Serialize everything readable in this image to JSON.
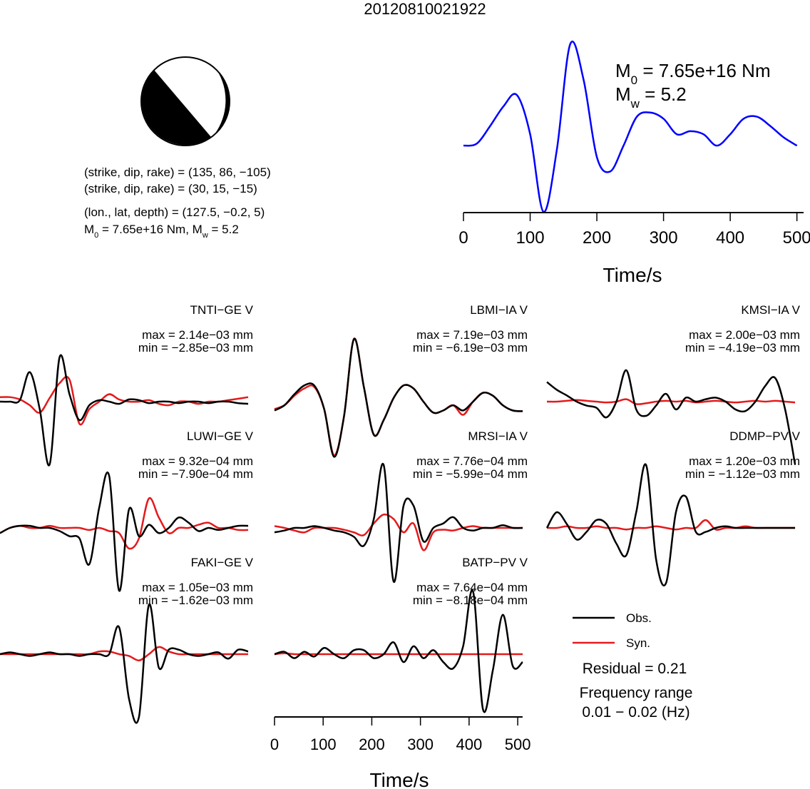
{
  "title": "20120810021922",
  "mechanism": {
    "planes": [
      "(strike, dip, rake) = (135, 86, −105)",
      "(strike, dip, rake) = (30, 15, −15)",
      "(lon., lat, depth) = (127.5, −0.2, 5)"
    ],
    "moment": [
      "M",
      "0",
      " = 7.65e+16 Nm, M",
      "w",
      " = 5.2"
    ]
  },
  "chart_data": [
    {
      "type": "line",
      "xlabel": "Time/s",
      "x": [
        0,
        20,
        40,
        60,
        80,
        100,
        120,
        140,
        160,
        180,
        200,
        220,
        240,
        260,
        280,
        300,
        320,
        340,
        360,
        380,
        400,
        420,
        440,
        460,
        480,
        500
      ],
      "series": [
        {
          "color": "#0000ff",
          "values": [
            0,
            0.02,
            0.19,
            0.38,
            0.49,
            0.11,
            -0.64,
            -0.04,
            0.98,
            0.64,
            -0.11,
            -0.25,
            0,
            0.28,
            0.32,
            0.26,
            0.11,
            0.14,
            0.11,
            0,
            0.11,
            0.26,
            0.28,
            0.19,
            0.08,
            0
          ]
        }
      ],
      "xlim": [
        0,
        510
      ],
      "xticks": [
        0,
        100,
        200,
        300,
        400,
        500
      ],
      "annotations": [
        [
          "M",
          "0",
          " = 7.65e+16 Nm"
        ],
        [
          "M",
          "w",
          " = 5.2"
        ]
      ]
    },
    {
      "type": "waveforms",
      "xlabel": "Time/s",
      "x": [
        0,
        20,
        40,
        60,
        80,
        100,
        120,
        140,
        160,
        180,
        200,
        220,
        240,
        260,
        280,
        300,
        320,
        340,
        360,
        380,
        400,
        420,
        440,
        460,
        480,
        500
      ],
      "xlim": [
        0,
        510
      ],
      "xticks": [
        0,
        100,
        200,
        300,
        400,
        500
      ],
      "series": [
        {
          "name": "Obs.",
          "color": "#000000"
        },
        {
          "name": "Syn.",
          "color": "#e41a1c"
        }
      ],
      "residual": "Residual = 0.21",
      "frequency": [
        "Frequency range",
        "0.01 − 0.02 (Hz)"
      ],
      "panels": [
        {
          "title": "TNTI−GE V",
          "max": "max = 2.14e−03 mm",
          "min": "min = −2.85e−03 mm",
          "obs": [
            0,
            0,
            6.6e-05,
            0.00131,
            -0.00033,
            -0.00279,
            0.00197,
            0.00033,
            -0.00082,
            -0.00016,
            6.6e-05,
            0,
            -9.8e-05,
            9.8e-05,
            6.6e-05,
            -6.6e-05,
            0,
            0,
            -6.6e-05,
            0,
            0,
            -6.6e-05,
            0,
            0,
            -6.6e-05,
            -9.8e-05
          ],
          "syn": [
            0.0002,
            0.0002,
            9.8e-05,
            -0.00016,
            -0.00049,
            0.00016,
            0.00082,
            0.00098,
            -0.00098,
            -0.00033,
            0,
            0.00033,
            9.8e-05,
            0,
            0,
            6.6e-05,
            -9.8e-05,
            -0.00016,
            0,
            0,
            -9.8e-05,
            0,
            0,
            6.6e-05,
            0.00013,
            0.0002
          ]
        },
        {
          "title": "LBMI−IA V",
          "max": "max = 7.19e−03 mm",
          "min": "min = −6.19e−03 mm",
          "obs": [
            -0.00097,
            -0.0004,
            0.00081,
            0.00178,
            0.00178,
            -0.00081,
            -0.00606,
            -0.00162,
            0.00687,
            0.00162,
            -0.00364,
            -0.00202,
            0.0004,
            0.00178,
            0.00145,
            0,
            -0.00121,
            -0.00097,
            -0.0004,
            -0.00097,
            0,
            0.00097,
            0.00065,
            -0.0004,
            -0.00097,
            -0.00105
          ],
          "syn": [
            -0.00081,
            -0.0004,
            0.00065,
            0.00145,
            0.00162,
            -0.00081,
            -0.0059,
            -0.00162,
            0.0069,
            0.00162,
            -0.0036,
            -0.00202,
            0.0004,
            0.00178,
            0.00145,
            0,
            -0.00121,
            -0.00097,
            -0.0004,
            -0.00145,
            0,
            0.00097,
            0.00065,
            -0.0004,
            -0.00097,
            -0.00105
          ]
        },
        {
          "title": "KMSI−IA V",
          "max": "max = 2.00e−03 mm",
          "min": "min = −4.19e−03 mm",
          "obs": [
            0.00123,
            0.00074,
            0.00039,
            0,
            -0.00025,
            -0.00039,
            -0.00099,
            0,
            0.00197,
            -0.00049,
            -0.00089,
            -0.00025,
            0.00049,
            -0.00049,
            0.00025,
            0,
            0.00015,
            0.00025,
            0,
            -0.00049,
            -0.00059,
            0,
            0.00099,
            0.00148,
            -0.00049,
            -0.00394
          ],
          "syn": [
            0,
            0,
            5e-05,
            0.0001,
            5e-05,
            0,
            -5e-05,
            0,
            0.00015,
            -0.00015,
            -0.0001,
            0,
            5e-05,
            0,
            5e-05,
            -5e-05,
            0,
            5e-05,
            0,
            -5e-05,
            0,
            5e-05,
            0,
            5e-05,
            0,
            -5e-05
          ]
        },
        {
          "title": "LUWI−GE V",
          "max": "max = 9.32e−04 mm",
          "min": "min = −7.90e−04 mm",
          "obs": [
            -5.3e-05,
            0,
            2.1e-05,
            2.1e-05,
            0,
            0,
            -3.2e-05,
            -8.5e-05,
            -0.000106,
            -0.00037,
            0.00021,
            0.00053,
            -0.00064,
            0.00019,
            -8.5e-05,
            3.2e-05,
            -5.3e-05,
            0,
            0.000106,
            5.3e-05,
            -3.2e-05,
            0,
            -2.1e-05,
            0,
            2.1e-05,
            2.1e-05
          ],
          "syn": [
            -5.3e-05,
            0,
            2.1e-05,
            0,
            0,
            2.1e-05,
            0,
            0,
            0,
            -2.1e-05,
            0,
            -3.2e-05,
            -5.3e-05,
            -0.00021,
            -0.000106,
            0.0003,
            0.000106,
            -5.3e-05,
            0,
            0,
            3.2e-05,
            5.3e-05,
            0,
            0,
            -2.1e-05,
            -2.1e-05
          ]
        },
        {
          "title": "MRSI−IA V",
          "max": "max = 7.76e−04 mm",
          "min": "min = −5.99e−04 mm",
          "obs": [
            -4.4e-05,
            -2.6e-05,
            0,
            0,
            1.8e-05,
            0,
            -2.6e-05,
            -4.4e-05,
            -8.8e-05,
            -0.000176,
            8.8e-05,
            0.00062,
            -0.00053,
            0.00022,
            0.00022,
            -0.000132,
            0,
            4.4e-05,
            0.000106,
            0,
            -2.6e-05,
            0,
            0,
            2.6e-05,
            0,
            0
          ],
          "syn": [
            1.8e-05,
            0,
            -2.6e-05,
            -4.4e-05,
            0,
            0,
            0,
            -1.8e-05,
            -4.4e-05,
            -7.1e-05,
            4.4e-05,
            0.000132,
            8.8e-05,
            -4.4e-05,
            4.4e-05,
            -0.00022,
            -4.4e-05,
            -1.8e-05,
            -2.6e-05,
            0,
            1.8e-05,
            0,
            0,
            0,
            0,
            0
          ]
        },
        {
          "title": "DDMP−PV V",
          "max": "max = 1.20e−03 mm",
          "min": "min = −1.12e−03 mm",
          "obs": [
            0,
            0.00027,
            6.8e-05,
            -0.0002,
            -6.8e-05,
            0.000135,
            6.8e-05,
            -0.00027,
            -0.00047,
            0.00027,
            0.00108,
            -0.00054,
            -0.00095,
            0.00027,
            0.00054,
            -6.8e-05,
            -6.8e-05,
            0,
            2.7e-05,
            0,
            0,
            0,
            0,
            0,
            0,
            0
          ],
          "syn": [
            0,
            0,
            2.7e-05,
            0,
            0,
            2.7e-05,
            0,
            0,
            -2.7e-05,
            0,
            0,
            2.7e-05,
            0,
            -2.7e-05,
            0,
            0,
            0.000135,
            -2.7e-05,
            0,
            0,
            2.7e-05,
            0,
            0,
            0,
            0,
            0
          ]
        },
        {
          "title": "FAKI−GE V",
          "max": "max = 1.05e−03 mm",
          "min": "min = −1.62e−03 mm",
          "obs": [
            0,
            3.6e-05,
            0,
            -3.6e-05,
            0,
            3.6e-05,
            0,
            0,
            -3.6e-05,
            0,
            0,
            0,
            0.00054,
            -0.0009,
            -0.00126,
            0.00099,
            -0.00027,
            9e-05,
            9e-05,
            0,
            -3.6e-05,
            0,
            3.6e-05,
            -9e-05,
            9e-05,
            5.4e-05
          ],
          "syn": [
            0,
            0,
            0,
            0,
            0,
            0,
            0,
            0,
            0,
            0,
            5.4e-05,
            5.4e-05,
            0,
            -3.6e-05,
            -0.000126,
            0,
            0.000144,
            5.4e-05,
            0,
            0,
            0,
            0,
            0,
            0,
            0,
            0
          ]
        },
        {
          "title": "BATP−PV V",
          "max": "max = 7.64e−04 mm",
          "min": "min = −8.18e−04 mm",
          "obs": [
            0,
            2.8e-05,
            -4.7e-05,
            2.8e-05,
            -2.8e-05,
            7.4e-05,
            0,
            -4.7e-05,
            4.7e-05,
            4.7e-05,
            -4.7e-05,
            0,
            0.00014,
            -9.3e-05,
            9.3e-05,
            -4.7e-05,
            4.7e-05,
            -9.3e-05,
            -0.000167,
            9.3e-05,
            0.00074,
            -0.00065,
            -0.000186,
            0.000465,
            -0.00014,
            -9.3e-05
          ],
          "syn": [
            0,
            1e-05,
            0,
            0,
            0,
            0,
            0,
            0,
            0,
            0,
            0,
            0,
            0,
            0,
            0,
            0,
            0,
            0,
            0,
            0,
            0,
            0,
            0,
            0,
            0,
            0
          ]
        }
      ]
    }
  ]
}
